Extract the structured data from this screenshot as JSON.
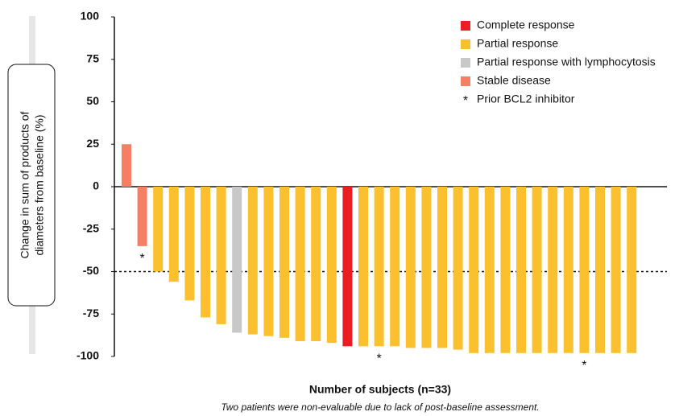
{
  "chart_data": {
    "type": "waterfall",
    "ylabel": [
      "Change in sum of products of",
      "diameters from baseline (%)"
    ],
    "xlabel": "Number of subjects (n=33)",
    "caption": "Two patients were non-evaluable due to lack of post-baseline assessment.",
    "ylim": [
      -100,
      100
    ],
    "yticks": [
      100,
      75,
      50,
      25,
      0,
      -25,
      -50,
      -75,
      -100
    ],
    "reference_line": -50,
    "legend": [
      {
        "name": "Complete response",
        "color": "#ed1c24"
      },
      {
        "name": "Partial response",
        "color": "#fbc02d"
      },
      {
        "name": "Partial response with lymphocytosis",
        "color": "#c8c8c8"
      },
      {
        "name": "Stable disease",
        "color": "#f47f63"
      },
      {
        "name": "Prior BCL2 inhibitor",
        "marker": "*"
      }
    ],
    "values": [
      25,
      -35,
      -50,
      -56,
      -67,
      -77,
      -81,
      -86,
      -87,
      -88,
      -89,
      -91,
      -91,
      -92,
      -94,
      -94,
      -94,
      -94,
      -95,
      -95,
      -95,
      -96,
      -98,
      -98,
      -98,
      -98,
      -98,
      -98,
      -98,
      -98,
      -98,
      -98,
      -98
    ],
    "colors": [
      "#f47f63",
      "#f47f63",
      "#fbc02d",
      "#fbc02d",
      "#fbc02d",
      "#fbc02d",
      "#fbc02d",
      "#c8c8c8",
      "#fbc02d",
      "#fbc02d",
      "#fbc02d",
      "#fbc02d",
      "#fbc02d",
      "#fbc02d",
      "#ed1c24",
      "#fbc02d",
      "#fbc02d",
      "#fbc02d",
      "#fbc02d",
      "#fbc02d",
      "#fbc02d",
      "#fbc02d",
      "#fbc02d",
      "#fbc02d",
      "#fbc02d",
      "#fbc02d",
      "#fbc02d",
      "#fbc02d",
      "#fbc02d",
      "#fbc02d",
      "#fbc02d",
      "#fbc02d",
      "#fbc02d"
    ],
    "prior_bcl2": [
      false,
      true,
      false,
      false,
      false,
      false,
      false,
      false,
      false,
      false,
      false,
      false,
      false,
      false,
      false,
      false,
      true,
      false,
      false,
      false,
      false,
      false,
      false,
      false,
      false,
      false,
      false,
      false,
      false,
      true,
      false,
      false,
      false
    ]
  }
}
